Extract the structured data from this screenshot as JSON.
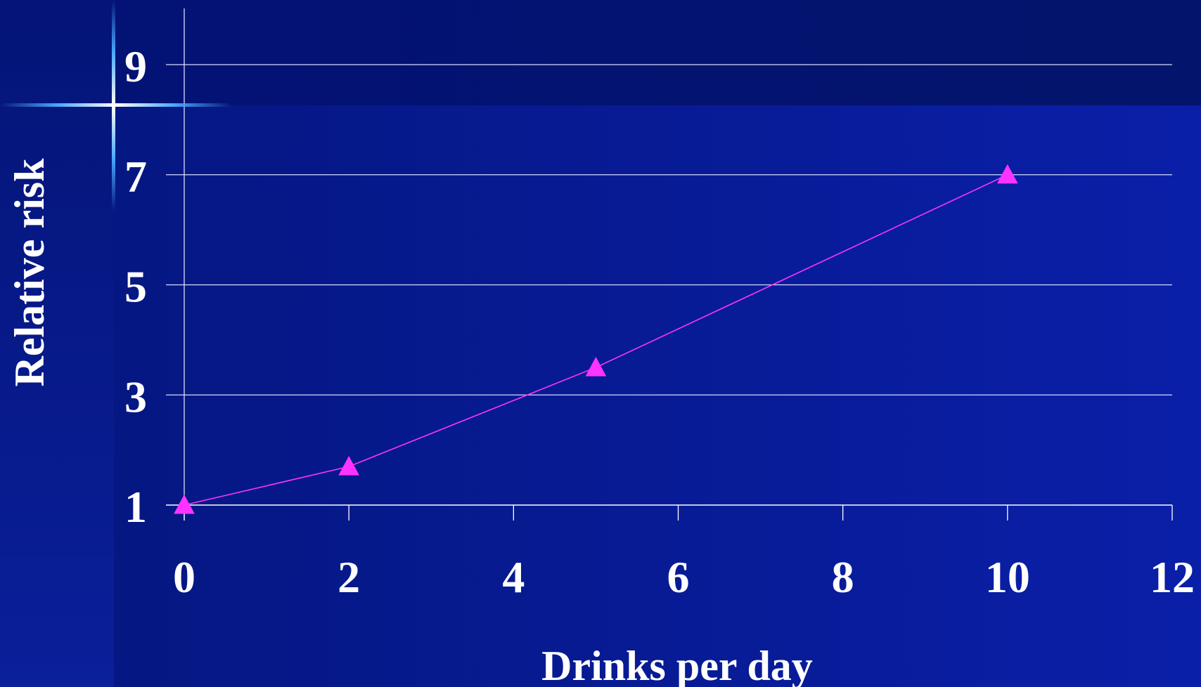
{
  "chart_data": {
    "type": "line",
    "xlabel": "Drinks per day",
    "ylabel": "Relative risk",
    "xlim": [
      0,
      12
    ],
    "ylim": [
      1,
      9
    ],
    "x_ticks": [
      "0",
      "2",
      "4",
      "6",
      "8",
      "10",
      "12"
    ],
    "y_ticks": [
      "1",
      "3",
      "5",
      "7",
      "9"
    ],
    "grid": true,
    "series": [
      {
        "color": "#ff33ff",
        "marker": "triangle",
        "x": [
          0,
          2,
          5,
          10
        ],
        "y": [
          1.0,
          1.7,
          3.5,
          7.0
        ]
      }
    ]
  }
}
